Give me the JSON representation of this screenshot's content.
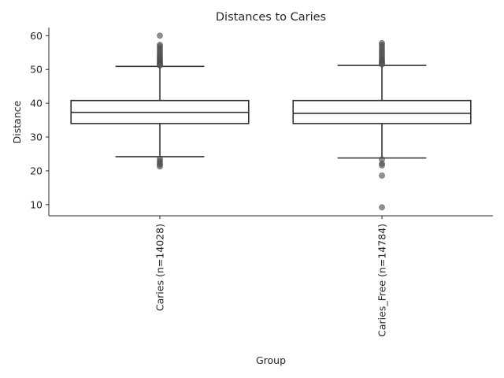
{
  "chart_data": {
    "type": "box",
    "title": "Distances to Caries",
    "xlabel": "Group",
    "ylabel": "Distance",
    "ylim": [
      6.7,
      62.4
    ],
    "yticks": [
      10,
      20,
      30,
      40,
      50,
      60
    ],
    "grid": false,
    "legend": "none",
    "categories": [
      "Caries (n=14028)",
      "Caries_Free (n=14784)"
    ],
    "boxes": [
      {
        "q1": 34.0,
        "median": 37.3,
        "q3": 40.8,
        "whisker_low": 24.2,
        "whisker_high": 50.9,
        "outliers": [
          60.0,
          57.3,
          56.8,
          56.2,
          55.7,
          55.1,
          54.6,
          54.1,
          53.6,
          53.2,
          52.8,
          52.4,
          52.0,
          51.7,
          51.4,
          51.2,
          23.5,
          22.9,
          22.3,
          21.8,
          21.3
        ]
      },
      {
        "q1": 34.0,
        "median": 37.0,
        "q3": 40.8,
        "whisker_low": 23.8,
        "whisker_high": 51.2,
        "outliers": [
          57.8,
          57.3,
          56.7,
          56.1,
          55.5,
          55.0,
          54.4,
          53.9,
          53.4,
          52.9,
          52.5,
          52.1,
          51.8,
          51.5,
          23.4,
          22.1,
          21.6,
          18.6,
          9.2
        ]
      }
    ],
    "colors": {
      "box_edge": "#333333",
      "box_fill": "#ffffff",
      "flier": "#555555",
      "text": "#262626"
    }
  }
}
